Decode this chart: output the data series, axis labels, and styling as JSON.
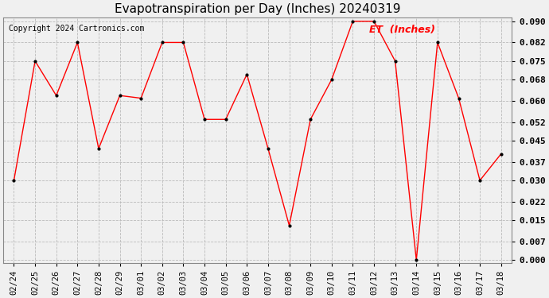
{
  "title": "Evapotranspiration per Day (Inches) 20240319",
  "copyright": "Copyright 2024 Cartronics.com",
  "legend_label": "ET  (Inches)",
  "dates": [
    "02/24",
    "02/25",
    "02/26",
    "02/27",
    "02/28",
    "02/29",
    "03/01",
    "03/02",
    "03/03",
    "03/04",
    "03/05",
    "03/06",
    "03/07",
    "03/08",
    "03/09",
    "03/10",
    "03/11",
    "03/12",
    "03/13",
    "03/14",
    "03/15",
    "03/16",
    "03/17",
    "03/18"
  ],
  "values": [
    0.03,
    0.075,
    0.062,
    0.082,
    0.042,
    0.062,
    0.061,
    0.082,
    0.082,
    0.053,
    0.053,
    0.07,
    0.042,
    0.013,
    0.053,
    0.068,
    0.09,
    0.09,
    0.075,
    0.0,
    0.082,
    0.061,
    0.03,
    0.04
  ],
  "ylim": [
    -0.001,
    0.0915
  ],
  "yticks": [
    0.0,
    0.007,
    0.015,
    0.022,
    0.03,
    0.037,
    0.045,
    0.052,
    0.06,
    0.068,
    0.075,
    0.082,
    0.09
  ],
  "line_color": "red",
  "marker_color": "black",
  "grid_color": "#bbbbbb",
  "bg_color": "#f0f0f0",
  "title_fontsize": 11,
  "copyright_fontsize": 7,
  "legend_fontsize": 9,
  "tick_fontsize": 7.5,
  "ytick_fontsize": 8,
  "ytick_fontweight": "bold"
}
